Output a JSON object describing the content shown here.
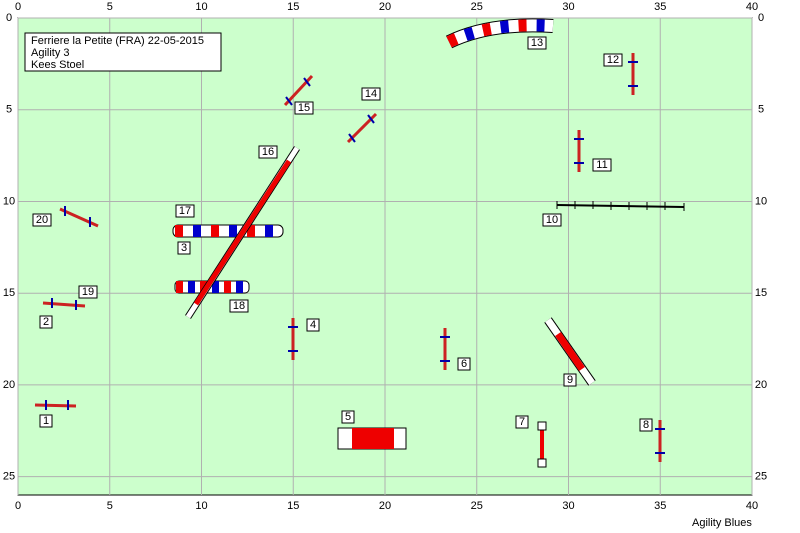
{
  "header": {
    "lines": [
      "Ferriere la Petite (FRA) 22-05-2015",
      "Agility 3",
      "Kees Stoel"
    ]
  },
  "axes": {
    "xlim": [
      0,
      40
    ],
    "ylim": [
      0,
      26
    ],
    "xticks": [
      0,
      5,
      10,
      15,
      20,
      25,
      30,
      35,
      40
    ],
    "yticks": [
      0,
      5,
      10,
      15,
      20,
      25
    ]
  },
  "obstacles": [
    {
      "label": "1"
    },
    {
      "label": "2"
    },
    {
      "label": "3"
    },
    {
      "label": "4"
    },
    {
      "label": "5"
    },
    {
      "label": "6"
    },
    {
      "label": "7"
    },
    {
      "label": "8"
    },
    {
      "label": "9"
    },
    {
      "label": "10"
    },
    {
      "label": "11"
    },
    {
      "label": "12"
    },
    {
      "label": "13"
    },
    {
      "label": "14"
    },
    {
      "label": "15"
    },
    {
      "label": "16"
    },
    {
      "label": "17"
    },
    {
      "label": "18"
    },
    {
      "label": "19"
    },
    {
      "label": "20"
    }
  ],
  "footer": "Agility Blues"
}
